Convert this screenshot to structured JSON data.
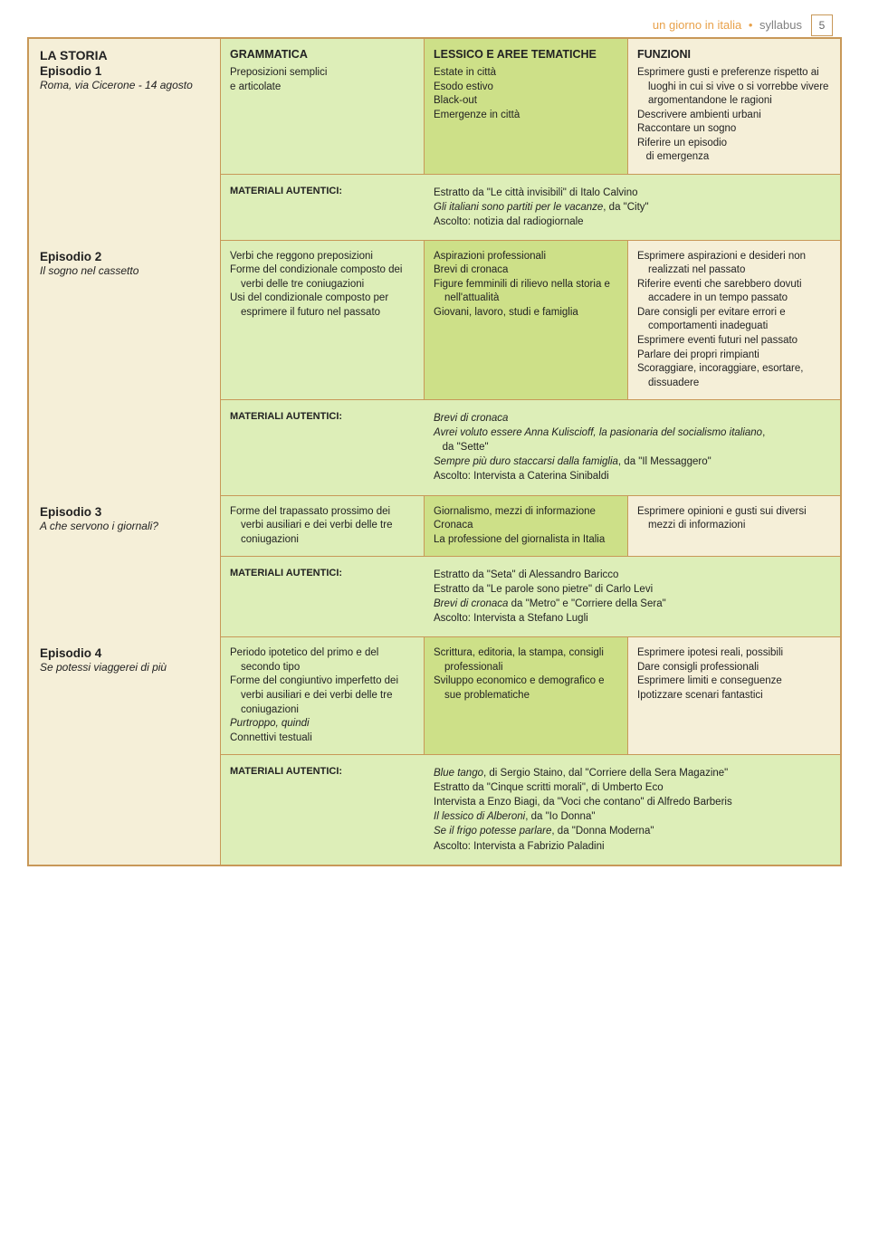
{
  "header": {
    "title_accent": "un giorno in italia",
    "title_main": "syllabus",
    "page_number": "5"
  },
  "colors": {
    "border": "#c89858",
    "bg_cream": "#f5efd8",
    "bg_green_light": "#ddeeb8",
    "bg_green": "#cde088",
    "accent": "#e8a14a",
    "text_grey": "#808080"
  },
  "column_headers": {
    "grammatica": "GRAMMATICA",
    "lessico": "LESSICO E AREE TEMATICHE",
    "funzioni": "FUNZIONI"
  },
  "materiali_label": "MATERIALI AUTENTICI:",
  "storia_label": "LA STORIA",
  "episodes": [
    {
      "ep_title": "Episodio 1",
      "ep_sub": "Roma, via Cicerone - 14 agosto",
      "grammatica": "Preposizioni semplici\ne articolate",
      "lessico": "Estate in città\nEsodo estivo\nBlack-out\nEmergenze in città",
      "funzioni": "Esprimere gusti e preferenze rispetto ai luoghi in cui si vive o si vorrebbe vivere argomentandone le ragioni\nDescrivere ambienti urbani\nRaccontare un sogno\nRiferire un episodio\n  di emergenza",
      "materiali": "Estratto da \"Le città invisibili\" di Italo Calvino\n<i>Gli italiani sono partiti per le vacanze</i>, da \"City\"\nAscolto: notizia dal radiogiornale"
    },
    {
      "ep_title": "Episodio 2",
      "ep_sub": "Il sogno nel cassetto",
      "grammatica": "Verbi che reggono preposizioni\nForme del condizionale composto dei verbi delle tre coniugazioni\nUsi del condizionale composto per esprimere il futuro nel passato",
      "lessico": "Aspirazioni professionali\nBrevi di cronaca\nFigure femminili di rilievo nella storia e nell'attualità\nGiovani, lavoro, studi e famiglia",
      "funzioni": "Esprimere aspirazioni e desideri non realizzati nel passato\nRiferire eventi che sarebbero dovuti accadere in un tempo passato\nDare consigli per evitare errori e comportamenti inadeguati\nEsprimere eventi futuri nel passato\nParlare dei propri rimpianti\nScoraggiare, incoraggiare, esortare, dissuadere",
      "materiali": "<i>Brevi di cronaca</i>\n<i>Avrei voluto essere Anna Kuliscioff, la pasionaria del socialismo italiano</i>,\n  da \"Sette\"\n<i>Sempre più duro staccarsi dalla famiglia</i>, da \"Il Messaggero\"\nAscolto: Intervista a Caterina Sinibaldi"
    },
    {
      "ep_title": "Episodio 3",
      "ep_sub": "A che servono i giornali?",
      "grammatica": "Forme del trapassato prossimo dei verbi ausiliari e dei verbi delle tre coniugazioni",
      "lessico": "Giornalismo, mezzi di informazione\nCronaca\nLa professione del giornalista in Italia",
      "funzioni": "Esprimere opinioni e gusti sui diversi mezzi di informazioni",
      "materiali": "Estratto da \"Seta\" di Alessandro Baricco\nEstratto da \"Le parole sono pietre\" di Carlo Levi\n<i>Brevi di cronaca</i> da \"Metro\" e \"Corriere della Sera\"\nAscolto: Intervista a Stefano Lugli"
    },
    {
      "ep_title": "Episodio 4",
      "ep_sub": "Se potessi viaggerei di più",
      "grammatica": "Periodo ipotetico del primo e del secondo tipo\nForme del congiuntivo imperfetto dei verbi ausiliari e dei verbi delle tre coniugazioni\n<i>Purtroppo, quindi</i>\nConnettivi testuali",
      "lessico": "Scrittura, editoria, la stampa, consigli professionali\nSviluppo economico e demografico e sue problematiche",
      "funzioni": "Esprimere ipotesi reali, possibili\nDare consigli professionali\nEsprimere limiti e conseguenze\nIpotizzare scenari fantastici",
      "materiali": "<i>Blue tango</i>, di Sergio Staino, dal \"Corriere della Sera Magazine\"\nEstratto da \"Cinque scritti morali\", di Umberto Eco\nIntervista a Enzo Biagi, da \"Voci che contano\" di Alfredo Barberis\n<i>Il lessico di Alberoni</i>, da \"Io Donna\"\n<i>Se il frigo potesse parlare</i>, da \"Donna Moderna\"\nAscolto: Intervista a Fabrizio Paladini"
    }
  ]
}
